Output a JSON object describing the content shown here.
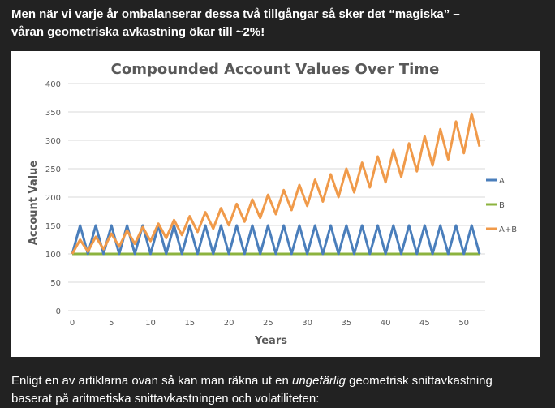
{
  "text_above": {
    "line1": "Men när vi varje år ombalanserar dessa två tillgångar så sker det “magiska” –",
    "line2": "våran geometriska avkastning ökar till ~2%!"
  },
  "text_below": {
    "line1_before": "Enligt en av artiklarna ovan så kan man räkna ut en ",
    "line1_italic": "ungefärlig",
    "line1_after": " geometrisk snittavkastning",
    "line2": "baserat på aritmetiska snittavkastningen och volatiliteten:"
  },
  "chart_data": {
    "type": "line",
    "title": "Compounded Account Values Over Time",
    "xlabel": "Years",
    "ylabel": "Account Value",
    "xlim": [
      0,
      52
    ],
    "ylim": [
      0,
      400
    ],
    "xticks": [
      0,
      5,
      10,
      15,
      20,
      25,
      30,
      35,
      40,
      45,
      50
    ],
    "yticks": [
      0,
      50,
      100,
      150,
      200,
      250,
      300,
      350,
      400
    ],
    "grid": true,
    "legend_position": "right",
    "x": [
      0,
      1,
      2,
      3,
      4,
      5,
      6,
      7,
      8,
      9,
      10,
      11,
      12,
      13,
      14,
      15,
      16,
      17,
      18,
      19,
      20,
      21,
      22,
      23,
      24,
      25,
      26,
      27,
      28,
      29,
      30,
      31,
      32,
      33,
      34,
      35,
      36,
      37,
      38,
      39,
      40,
      41,
      42,
      43,
      44,
      45,
      46,
      47,
      48,
      49,
      50,
      51,
      52
    ],
    "series": [
      {
        "name": "A",
        "color": "#4a7ebb",
        "values": [
          100,
          150,
          100,
          150,
          100,
          150,
          100,
          150,
          100,
          150,
          100,
          150,
          100,
          150,
          100,
          150,
          100,
          150,
          100,
          150,
          100,
          150,
          100,
          150,
          100,
          150,
          100,
          150,
          100,
          150,
          100,
          150,
          100,
          150,
          100,
          150,
          100,
          150,
          100,
          150,
          100,
          150,
          100,
          150,
          100,
          150,
          100,
          150,
          100,
          150,
          100,
          150,
          100
        ]
      },
      {
        "name": "B",
        "color": "#8cb33f",
        "values": [
          100,
          100,
          100,
          100,
          100,
          100,
          100,
          100,
          100,
          100,
          100,
          100,
          100,
          100,
          100,
          100,
          100,
          100,
          100,
          100,
          100,
          100,
          100,
          100,
          100,
          100,
          100,
          100,
          100,
          100,
          100,
          100,
          100,
          100,
          100,
          100,
          100,
          100,
          100,
          100,
          100,
          100,
          100,
          100,
          100,
          100,
          100,
          100,
          100,
          100,
          100,
          100,
          100
        ]
      },
      {
        "name": "A+B",
        "color": "#f09a4a",
        "values": [
          100,
          125,
          104.2,
          130.2,
          108.5,
          135.6,
          113.0,
          141.3,
          117.7,
          147.2,
          122.6,
          153.3,
          127.8,
          159.7,
          133.1,
          166.3,
          138.6,
          173.3,
          144.4,
          180.5,
          150.4,
          188.0,
          156.7,
          195.9,
          163.2,
          204.0,
          170.0,
          212.5,
          177.1,
          221.4,
          184.5,
          230.6,
          192.2,
          240.2,
          200.2,
          250.2,
          208.5,
          260.6,
          217.2,
          271.5,
          226.2,
          282.8,
          235.7,
          294.6,
          245.5,
          306.9,
          255.7,
          319.6,
          266.4,
          333.0,
          277.5,
          346.8,
          289.0
        ]
      }
    ]
  }
}
